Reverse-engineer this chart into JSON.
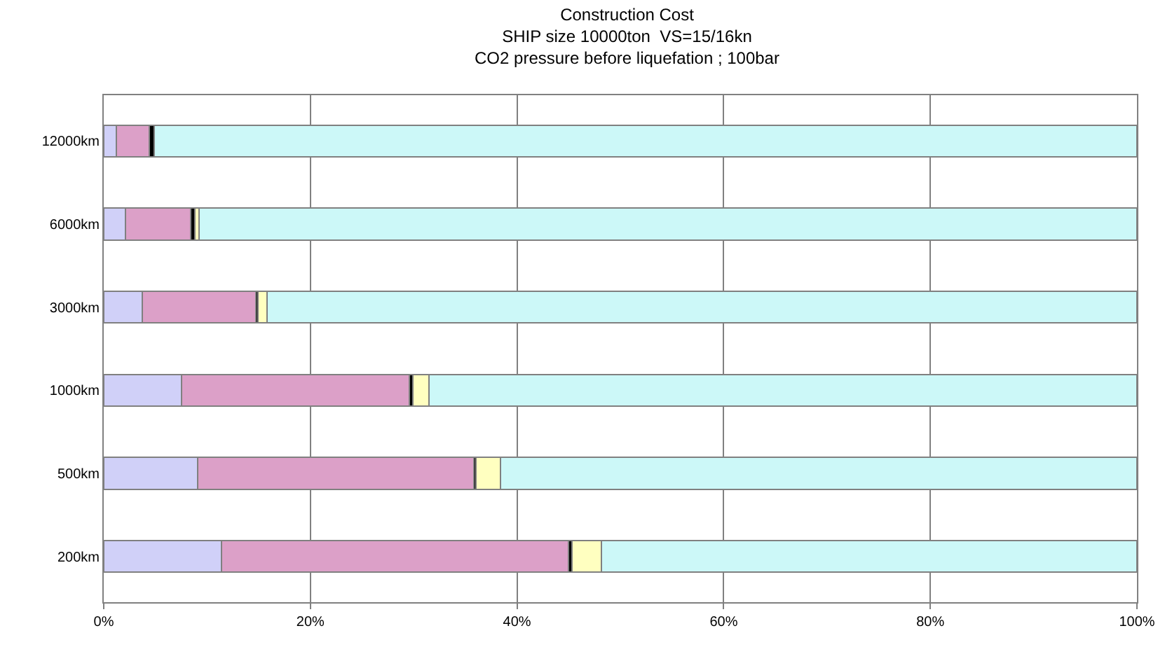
{
  "chart_data": {
    "type": "bar",
    "orientation": "horizontal",
    "stacked": true,
    "title": "Construction Cost",
    "subtitle": "SHIP size 10000ton  VS=15/16kn\nCO2 pressure before liquefation ; 100bar",
    "categories": [
      "12000km",
      "6000km",
      "3000km",
      "1000km",
      "500km",
      "200km"
    ],
    "series": [
      {
        "color": "#d0d0f8",
        "values": [
          1.2,
          2.1,
          3.7,
          7.5,
          9.1,
          11.4
        ]
      },
      {
        "color": "#dca0c8",
        "values": [
          3.2,
          6.3,
          11.0,
          22.1,
          26.7,
          33.6
        ]
      },
      {
        "color": "#000000",
        "values": [
          0.5,
          0.4,
          0.2,
          0.3,
          0.2,
          0.3
        ]
      },
      {
        "color": "#ffffc0",
        "values": [
          0,
          0.4,
          0.9,
          1.6,
          2.4,
          2.9
        ]
      },
      {
        "color": "#ccf8f8",
        "values": [
          95.1,
          90.8,
          84.2,
          68.5,
          61.6,
          51.8
        ]
      }
    ],
    "xlim": [
      0,
      100
    ],
    "xticks": [
      {
        "value": 0,
        "label": "0%"
      },
      {
        "value": 20,
        "label": "20%"
      },
      {
        "value": 40,
        "label": "40%"
      },
      {
        "value": 60,
        "label": "60%"
      },
      {
        "value": 80,
        "label": "80%"
      },
      {
        "value": 100,
        "label": "100%"
      }
    ],
    "grid": "x"
  }
}
